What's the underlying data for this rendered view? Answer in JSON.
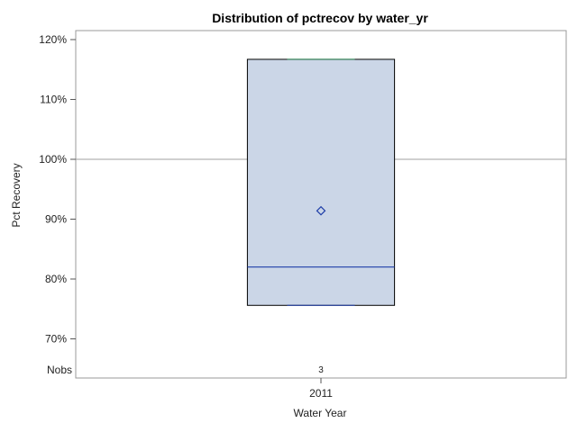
{
  "chart_data": {
    "type": "box",
    "title": "Distribution of pctrecov by water_yr",
    "xlabel": "Water Year",
    "ylabel": "Pct Recovery",
    "ylim": [
      68.5,
      121.5
    ],
    "yticks": [
      70,
      80,
      90,
      100,
      110,
      120
    ],
    "ytick_labels": [
      "70%",
      "80%",
      "90%",
      "100%",
      "110%",
      "120%"
    ],
    "reference_line": 100,
    "categories": [
      "2011"
    ],
    "boxes": [
      {
        "category": "2011",
        "min": 75.6,
        "q1": 75.6,
        "median": 82.0,
        "mean": 91.4,
        "q3": 116.7,
        "max": 116.7,
        "nobs": "3"
      }
    ],
    "nobs_label": "Nobs",
    "colors": {
      "box_fill": "#cbd6e7",
      "box_edge": "#000000",
      "median": "#1f3ea8",
      "mean": "#1f3ea8",
      "whisker": "#2e8b57",
      "reference": "#a0a0a0",
      "frame": "#9a9a9a"
    }
  }
}
